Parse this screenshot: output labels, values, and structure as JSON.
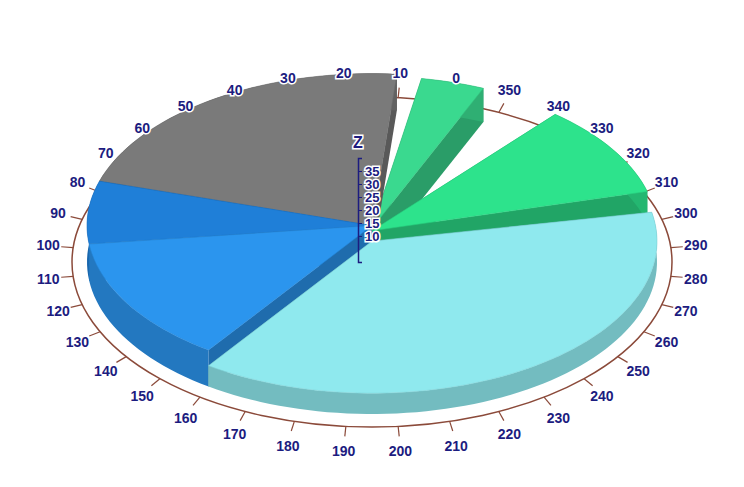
{
  "chart_data": {
    "type": "pie",
    "sectors": {
      "start": [
        352,
        10,
        88,
        112,
        160,
        300
      ],
      "end": [
        5,
        88,
        112,
        160,
        296,
        335
      ],
      "height": [
        13,
        14,
        14,
        14,
        8,
        12
      ]
    },
    "colors": [
      "#3ad98f",
      "#7a7a7a",
      "#1f7fd8",
      "#2b95ee",
      "#8fe9ee",
      "#2de38c"
    ],
    "angle_lim": [
      0,
      360
    ],
    "angle_ticks": [
      0,
      10,
      20,
      30,
      40,
      50,
      60,
      70,
      80,
      90,
      100,
      110,
      120,
      130,
      140,
      150,
      160,
      170,
      180,
      190,
      200,
      210,
      220,
      230,
      240,
      250,
      260,
      270,
      280,
      290,
      300,
      310,
      320,
      330,
      340,
      350
    ],
    "z_label": "Z",
    "zlim": [
      0,
      40
    ],
    "zticks": [
      10,
      15,
      20,
      25,
      30,
      35
    ]
  }
}
